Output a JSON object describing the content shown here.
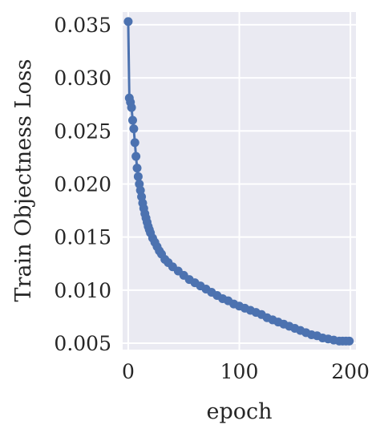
{
  "chart_data": {
    "type": "line",
    "title": "",
    "xlabel": "epoch",
    "ylabel": "Train Objectness Loss",
    "xlim": [
      -5,
      205
    ],
    "ylim": [
      0.0044,
      0.0362
    ],
    "xticks": [
      0,
      100,
      200
    ],
    "xtick_labels": [
      "0",
      "100",
      "200"
    ],
    "yticks": [
      0.005,
      0.01,
      0.015,
      0.02,
      0.025,
      0.03,
      0.035
    ],
    "ytick_labels": [
      "0.005",
      "0.010",
      "0.015",
      "0.020",
      "0.025",
      "0.030",
      "0.035"
    ],
    "grid": true,
    "legend": "none",
    "colors": {
      "plot_background": "#eaeaf2",
      "grid": "#ffffff",
      "series": "#4c72b0"
    },
    "series": [
      {
        "marker": "circle",
        "x": [
          0,
          1,
          2,
          3,
          4,
          5,
          6,
          7,
          8,
          9,
          10,
          11,
          12,
          13,
          14,
          15,
          16,
          17,
          18,
          19,
          20,
          22,
          24,
          26,
          28,
          30,
          33,
          36,
          40,
          45,
          50,
          55,
          60,
          65,
          70,
          75,
          80,
          85,
          90,
          95,
          100,
          105,
          110,
          115,
          120,
          125,
          130,
          135,
          140,
          145,
          150,
          155,
          160,
          165,
          170,
          175,
          180,
          185,
          190,
          193,
          196,
          199
        ],
        "values": [
          0.0353,
          0.0281,
          0.0277,
          0.0272,
          0.026,
          0.0252,
          0.0239,
          0.0226,
          0.0215,
          0.0207,
          0.02,
          0.0194,
          0.0188,
          0.0182,
          0.0177,
          0.0172,
          0.0168,
          0.0164,
          0.016,
          0.0157,
          0.0154,
          0.0149,
          0.0145,
          0.0141,
          0.0137,
          0.0134,
          0.0129,
          0.0126,
          0.0122,
          0.0118,
          0.0114,
          0.011,
          0.0107,
          0.0104,
          0.0101,
          0.0098,
          0.0095,
          0.0092,
          0.009,
          0.0087,
          0.0085,
          0.0083,
          0.0081,
          0.0079,
          0.0077,
          0.0074,
          0.0072,
          0.007,
          0.0068,
          0.0066,
          0.0064,
          0.0062,
          0.006,
          0.0058,
          0.0057,
          0.0055,
          0.0054,
          0.0053,
          0.0052,
          0.0052,
          0.0052,
          0.0052
        ]
      }
    ]
  }
}
